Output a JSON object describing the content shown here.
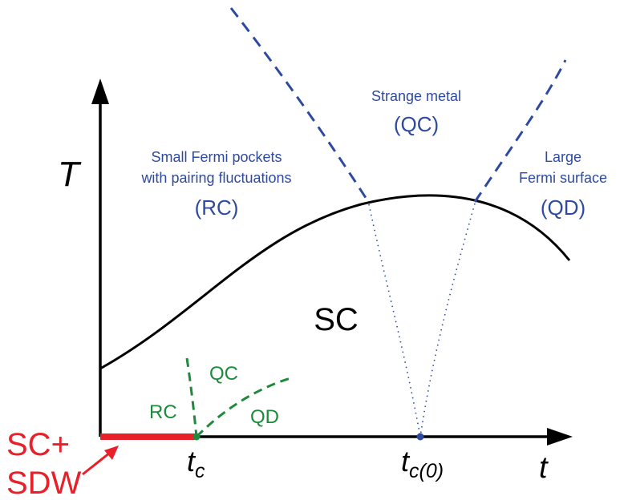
{
  "axes": {
    "y_label": "T",
    "x_label": "t"
  },
  "ticks": {
    "tc_base": "t",
    "tc_sub": "c",
    "tc0_base": "t",
    "tc0_sub": "c(0)"
  },
  "regions": {
    "sc": "SC",
    "rc_line1": "Small Fermi pockets",
    "rc_line2": "with pairing fluctuations",
    "rc_tag": "(RC)",
    "qc_line1": "Strange metal",
    "qc_tag": "(QC)",
    "qd_line1": "Large",
    "qd_line2": "Fermi surface",
    "qd_tag": "(QD)"
  },
  "inset": {
    "rc": "RC",
    "qc": "QC",
    "qd": "QD"
  },
  "sc_sdw": {
    "line1": "SC+",
    "line2": "SDW"
  },
  "colors": {
    "axis": "#000000",
    "sc_dome": "#000000",
    "crossover": "#2e4aa0",
    "inset": "#1e8a3c",
    "sc_sdw": "#e8202a"
  }
}
